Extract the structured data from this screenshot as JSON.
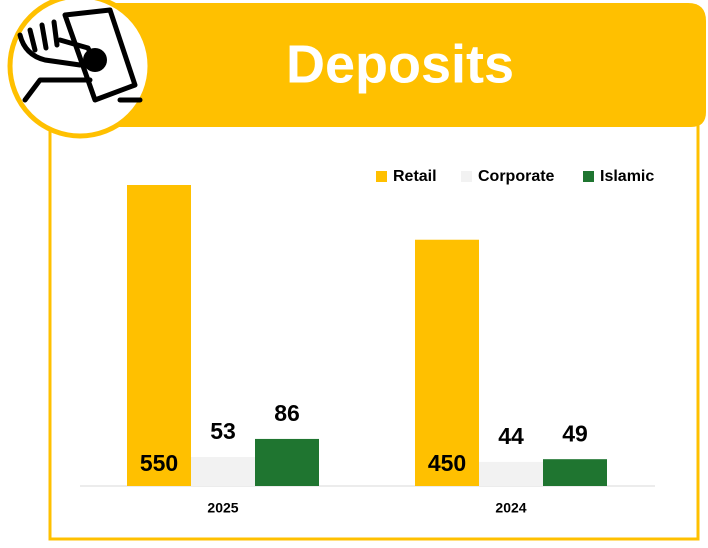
{
  "chart_data": {
    "type": "bar",
    "title": "Deposits",
    "categories": [
      "2025",
      "2024"
    ],
    "series": [
      {
        "name": "Retail",
        "color": "#FFC000",
        "values": [
          550,
          450
        ]
      },
      {
        "name": "Corporate",
        "color": "#F2F2F2",
        "values": [
          53,
          44
        ]
      },
      {
        "name": "Islamic",
        "color": "#1F7530",
        "values": [
          86,
          49
        ]
      }
    ],
    "legend": "top-right"
  }
}
